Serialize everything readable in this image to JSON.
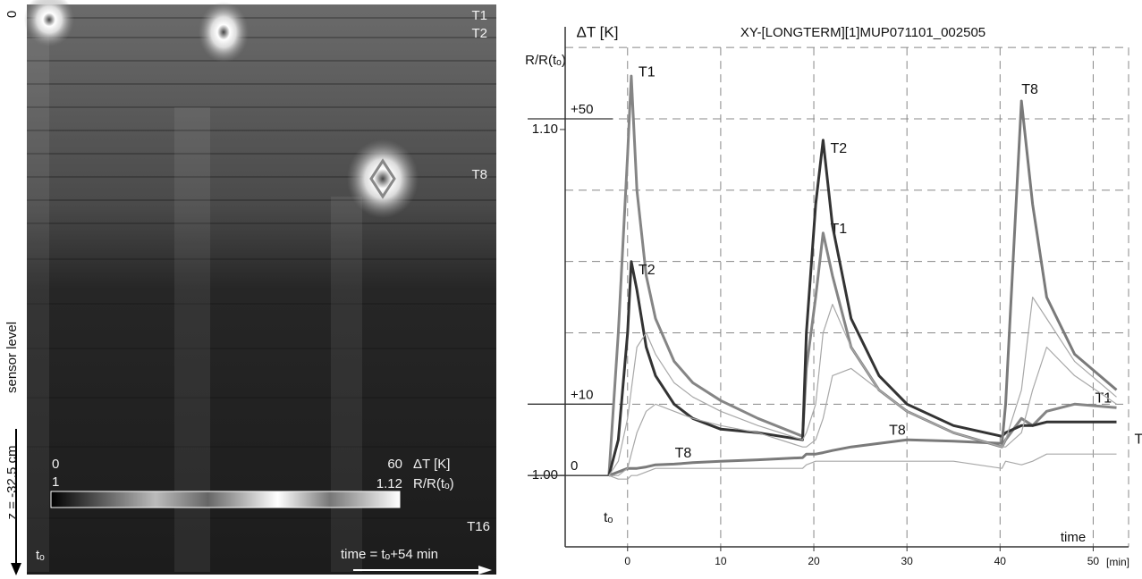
{
  "chart_data": [
    {
      "type": "heatmap",
      "y_top": 0,
      "y_label": "sensor level",
      "z_label": "z = -32.5 cm",
      "x_start": "tₒ",
      "x_label": "time = tₒ+54 min",
      "sensor_labels": [
        "T1",
        "T2",
        "T8",
        "T16"
      ],
      "colorbar": {
        "label": "ΔT [K]",
        "range": [
          0,
          60
        ],
        "label2": "R/R(tₒ)",
        "range2": [
          1,
          1.12
        ]
      }
    },
    {
      "type": "line",
      "title": "XY-[LONGTERM][1]MUP071101_002505",
      "y_label": "R/R(tₒ)",
      "y2_label": "ΔT [K]",
      "x_label": "time",
      "x_unit": "[min]",
      "origin_label": "tₒ",
      "xlim": [
        -6.7,
        53.8
      ],
      "xticks": [
        0,
        10,
        20,
        30,
        40,
        50
      ],
      "ylim": [
        0.9793,
        1.1297
      ],
      "yticks": [
        {
          "value": 1.0,
          "label": "1.00"
        },
        {
          "value": 1.1,
          "label": "1.10"
        }
      ],
      "y2lim": [
        -10,
        62.9
      ],
      "y2ticks": [
        {
          "value": 0,
          "label": "0"
        },
        {
          "value": 10,
          "label": "+10"
        },
        {
          "value": 50,
          "label": "+50"
        }
      ],
      "y2grid": [
        10,
        20,
        30,
        40,
        50,
        60
      ],
      "grid": true,
      "x": [
        -2,
        -1,
        0,
        0.4,
        1,
        2,
        3,
        5,
        7,
        10,
        14,
        18.8,
        19.2,
        20.2,
        21,
        22,
        24,
        27,
        30,
        35,
        40.2,
        40.6,
        42.3,
        43.5,
        45,
        48,
        52.5
      ],
      "series": [
        {
          "name": "T1",
          "color": "#858585",
          "width": 3,
          "axis": "y2",
          "values": [
            0,
            20,
            45,
            56,
            40,
            28,
            22,
            16,
            13,
            10.5,
            8,
            5.5,
            15,
            25,
            34,
            28,
            18,
            12,
            9,
            6,
            4,
            5,
            8,
            7,
            9,
            10,
            9.5
          ]
        },
        {
          "name": "T2",
          "color": "#333333",
          "width": 3,
          "axis": "y2",
          "values": [
            0,
            5,
            20,
            30,
            26,
            18,
            14,
            10,
            8,
            6.5,
            6,
            5,
            20,
            38,
            47,
            35,
            22,
            14,
            10,
            7,
            5.5,
            6,
            7,
            7,
            7.5,
            7.5,
            7.5
          ]
        },
        {
          "name": "T8",
          "color": "#7a7a7a",
          "width": 3,
          "axis": "y2",
          "values": [
            0,
            0.5,
            1,
            1,
            1,
            1.2,
            1.5,
            1.6,
            1.8,
            2,
            2.2,
            2.5,
            3,
            3,
            3.2,
            3.5,
            4,
            4.5,
            5,
            4.8,
            4.5,
            10,
            52.5,
            38,
            25,
            17,
            12
          ]
        },
        {
          "color": "#a8a8a8",
          "width": 1.2,
          "axis": "y2",
          "values": [
            0,
            2,
            8,
            12,
            18,
            20,
            17,
            13,
            11,
            9,
            7,
            5,
            6,
            10,
            20,
            24,
            18,
            12,
            9,
            6,
            4,
            5,
            12,
            25,
            22,
            16,
            11
          ]
        },
        {
          "color": "#a8a8a8",
          "width": 1.2,
          "axis": "y2",
          "values": [
            0,
            0,
            1,
            3,
            6,
            9,
            10,
            9,
            8,
            7,
            6,
            4,
            4,
            5,
            8,
            14,
            15,
            12,
            9,
            6,
            4,
            4,
            6,
            12,
            18,
            14,
            10
          ]
        },
        {
          "color": "#a8a8a8",
          "width": 1.2,
          "axis": "y2",
          "values": [
            0,
            -0.5,
            -0.5,
            0,
            0,
            0.5,
            1,
            1,
            1,
            1,
            1,
            1,
            1.5,
            2,
            2,
            2,
            2,
            2,
            2,
            2,
            1,
            2,
            1.5,
            2,
            3,
            3,
            3
          ]
        }
      ]
    }
  ]
}
